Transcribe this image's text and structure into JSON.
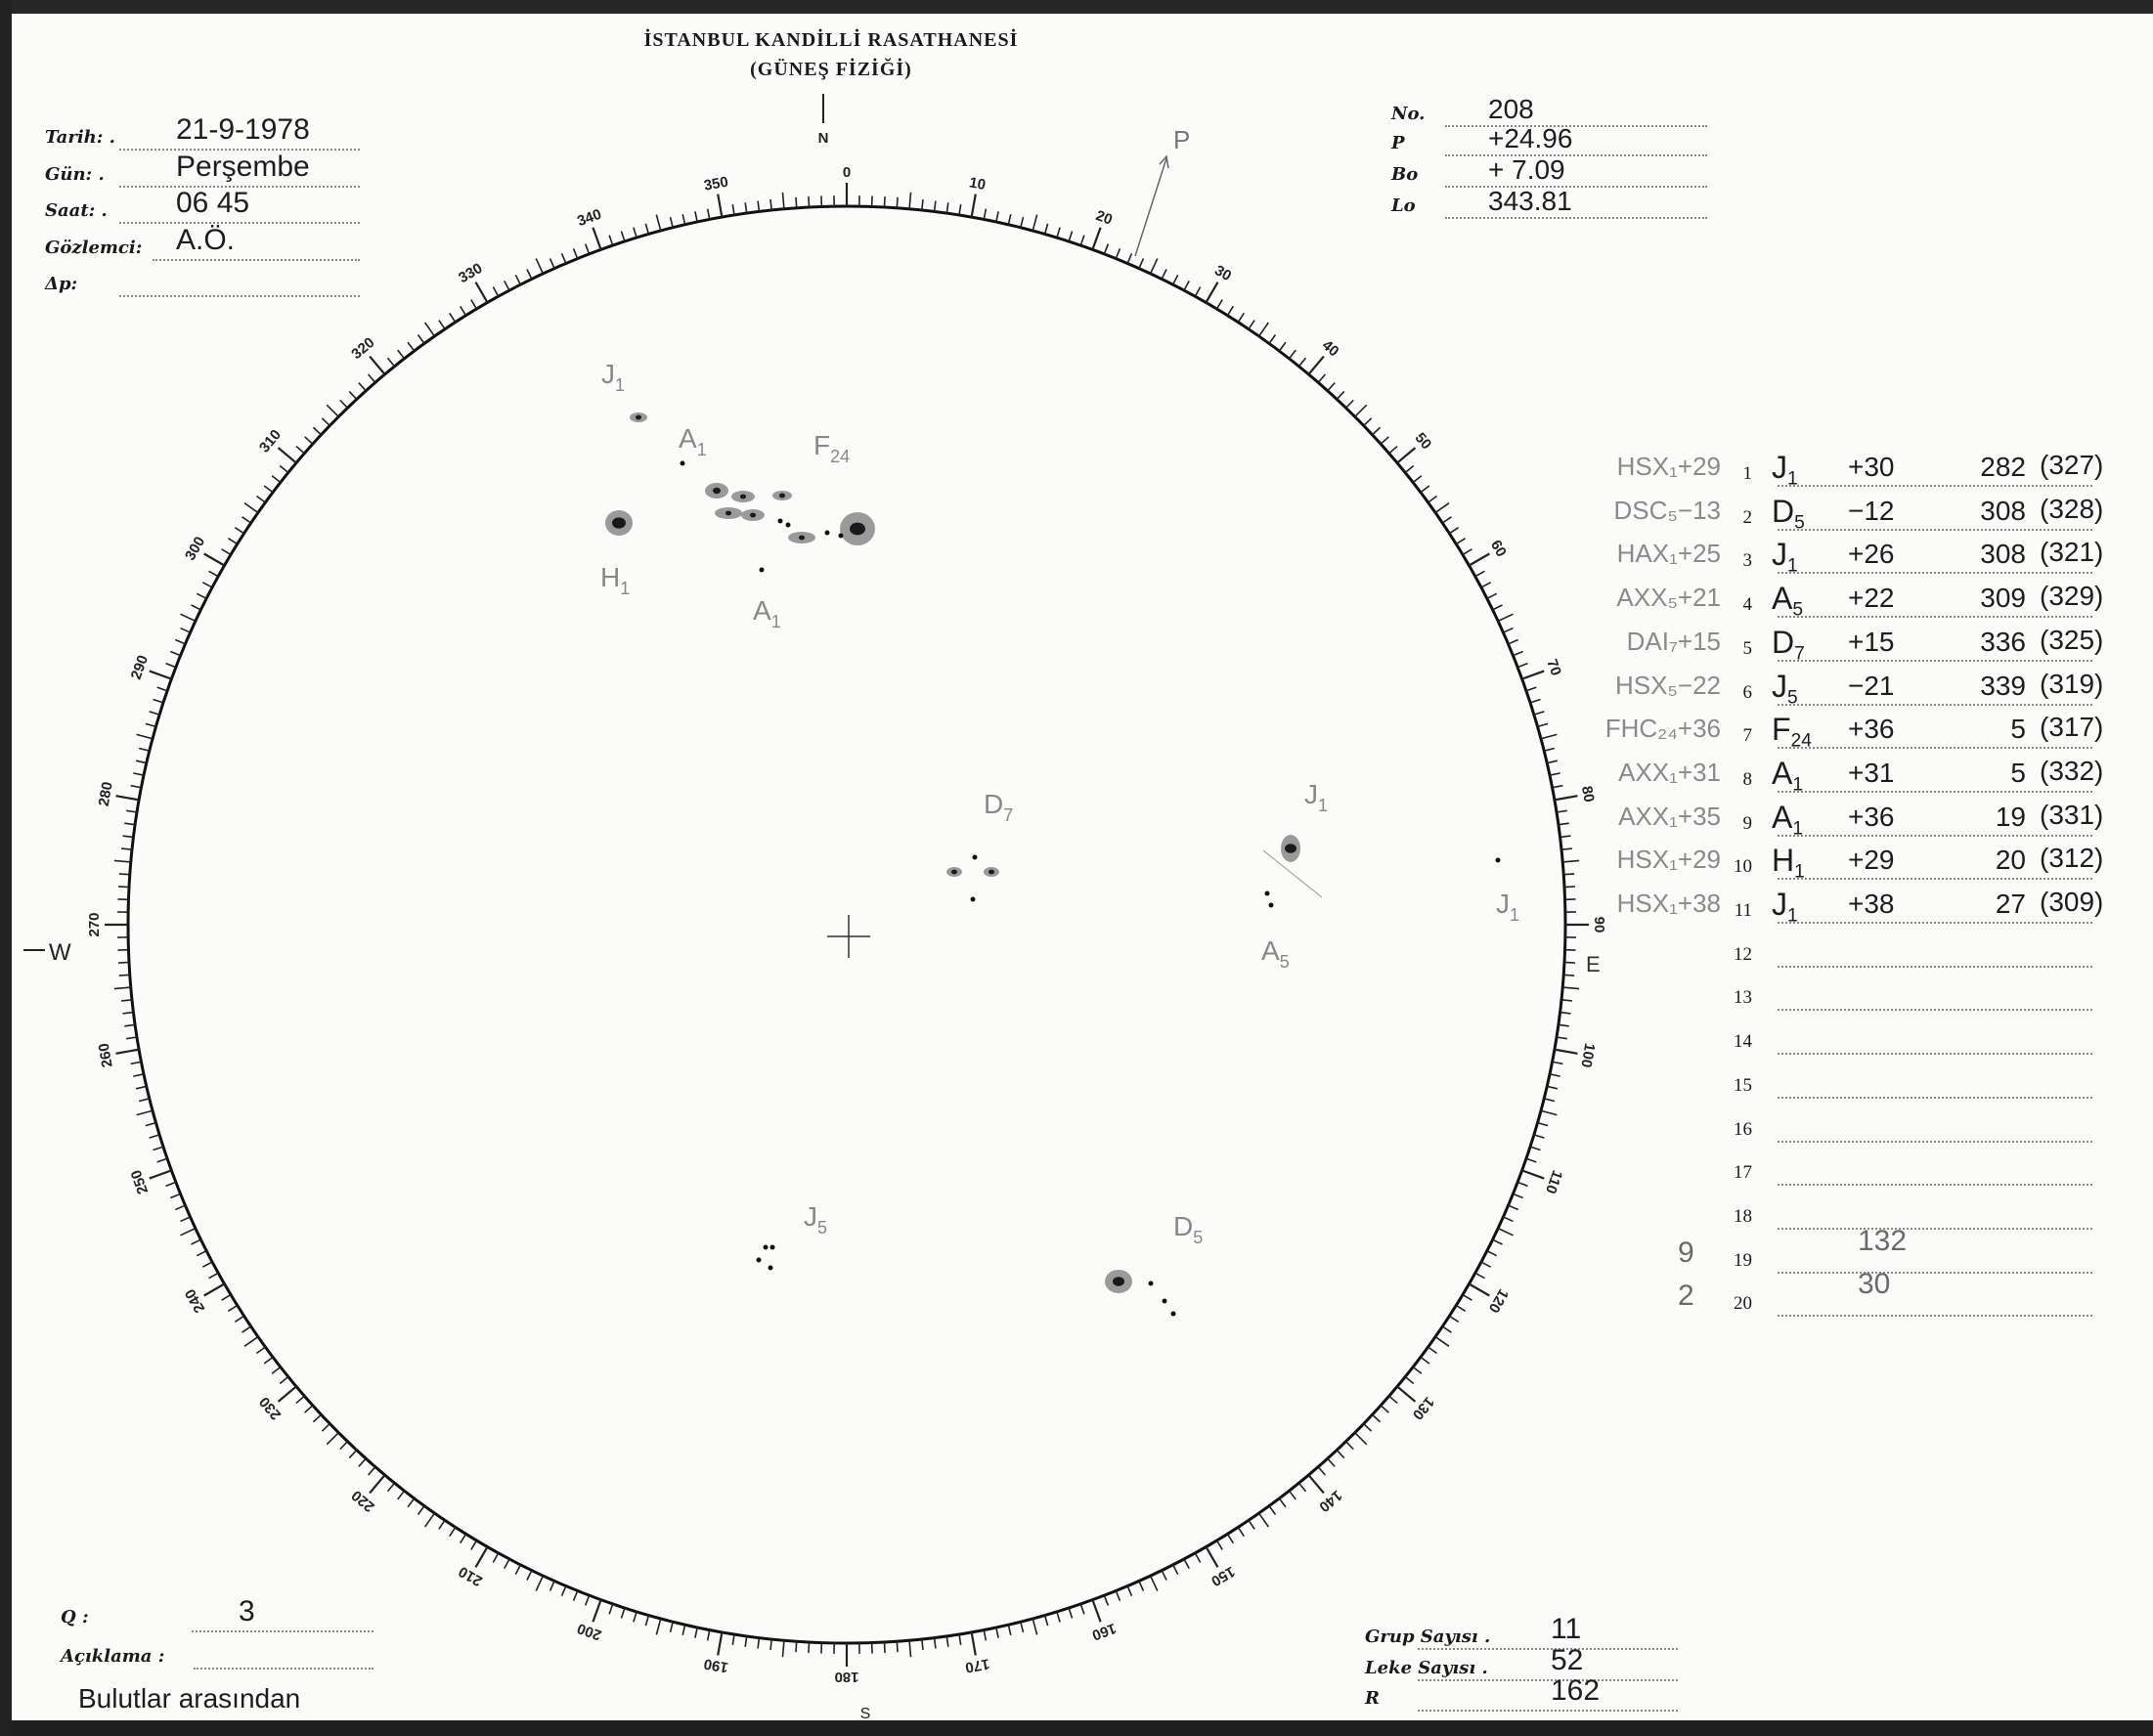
{
  "header": {
    "title": "İSTANBUL KANDİLLİ RASATHANESİ",
    "subtitle": "(GÜNEŞ FİZİĞİ)"
  },
  "info_left": [
    {
      "label": "Tarih: .",
      "value": "21-9-1978"
    },
    {
      "label": "Gün: .",
      "value": "Perşembe"
    },
    {
      "label": "Saat: .",
      "value": "06 45"
    },
    {
      "label": "Gözlemci:",
      "value": "A.Ö."
    },
    {
      "label": "Δp:",
      "value": ""
    }
  ],
  "info_right": [
    {
      "label": "No.",
      "value": "208"
    },
    {
      "label": "P",
      "value": "+24.96"
    },
    {
      "label": "Bo",
      "value": "+ 7.09"
    },
    {
      "label": "Lo",
      "value": "343.81"
    }
  ],
  "disk": {
    "directions": {
      "n": "N",
      "s": "S",
      "e": "E",
      "w": "W",
      "p": "P"
    },
    "scale_labels": [
      "0",
      "10",
      "20",
      "30",
      "40",
      "50",
      "60",
      "70",
      "80",
      "90",
      "100",
      "110",
      "120",
      "130",
      "140",
      "150",
      "160",
      "170",
      "180",
      "190",
      "200",
      "210",
      "220",
      "230",
      "240",
      "250",
      "260",
      "270",
      "280",
      "290",
      "300",
      "310",
      "320",
      "330",
      "340",
      "350"
    ],
    "group_labels": [
      {
        "letter": "J",
        "sub": "1"
      },
      {
        "letter": "A",
        "sub": "1"
      },
      {
        "letter": "F",
        "sub": "24"
      },
      {
        "letter": "H",
        "sub": "1"
      },
      {
        "letter": "A",
        "sub": "1"
      },
      {
        "letter": "D",
        "sub": "7"
      },
      {
        "letter": "J",
        "sub": "1"
      },
      {
        "letter": "A",
        "sub": "5"
      },
      {
        "letter": "J",
        "sub": "1"
      },
      {
        "letter": "J",
        "sub": "5"
      },
      {
        "letter": "D",
        "sub": "5"
      }
    ]
  },
  "groups_table": [
    {
      "n": "1",
      "note": "HSX₁+29",
      "letter": "J",
      "sub": "1",
      "lat": "+30",
      "lon": "282",
      "carr": "(327)"
    },
    {
      "n": "2",
      "note": "DSC₅−13",
      "letter": "D",
      "sub": "5",
      "lat": "−12",
      "lon": "308",
      "carr": "(328)"
    },
    {
      "n": "3",
      "note": "HAX₁+25",
      "letter": "J",
      "sub": "1",
      "lat": "+26",
      "lon": "308",
      "carr": "(321)"
    },
    {
      "n": "4",
      "note": "AXX₅+21",
      "letter": "A",
      "sub": "5",
      "lat": "+22",
      "lon": "309",
      "carr": "(329)"
    },
    {
      "n": "5",
      "note": "DAI₇+15",
      "letter": "D",
      "sub": "7",
      "lat": "+15",
      "lon": "336",
      "carr": "(325)"
    },
    {
      "n": "6",
      "note": "HSX₅−22",
      "letter": "J",
      "sub": "5",
      "lat": "−21",
      "lon": "339",
      "carr": "(319)"
    },
    {
      "n": "7",
      "note": "FHC₂₄+36",
      "letter": "F",
      "sub": "24",
      "lat": "+36",
      "lon": "5",
      "carr": "(317)"
    },
    {
      "n": "8",
      "note": "AXX₁+31",
      "letter": "A",
      "sub": "1",
      "lat": "+31",
      "lon": "5",
      "carr": "(332)"
    },
    {
      "n": "9",
      "note": "AXX₁+35",
      "letter": "A",
      "sub": "1",
      "lat": "+36",
      "lon": "19",
      "carr": "(331)"
    },
    {
      "n": "10",
      "note": "HSX₁+29",
      "letter": "H",
      "sub": "1",
      "lat": "+29",
      "lon": "20",
      "carr": "(312)"
    },
    {
      "n": "11",
      "note": "HSX₁+38",
      "letter": "J",
      "sub": "1",
      "lat": "+38",
      "lon": "27",
      "carr": "(309)"
    },
    {
      "n": "12"
    },
    {
      "n": "13"
    },
    {
      "n": "14"
    },
    {
      "n": "15"
    },
    {
      "n": "16"
    },
    {
      "n": "17"
    },
    {
      "n": "18"
    },
    {
      "n": "19",
      "margin": "9",
      "value": "132"
    },
    {
      "n": "20",
      "margin": "2",
      "value": "30"
    }
  ],
  "footer_left": {
    "q_label": "Q :",
    "q_value": "3",
    "remark_label": "Açıklama :",
    "remark_value": "Bulutlar arasından"
  },
  "footer_right": [
    {
      "label": "Grup Sayısı .",
      "value": "11"
    },
    {
      "label": "Leke Sayısı .",
      "value": "52"
    },
    {
      "label": "R",
      "value": "162"
    }
  ]
}
